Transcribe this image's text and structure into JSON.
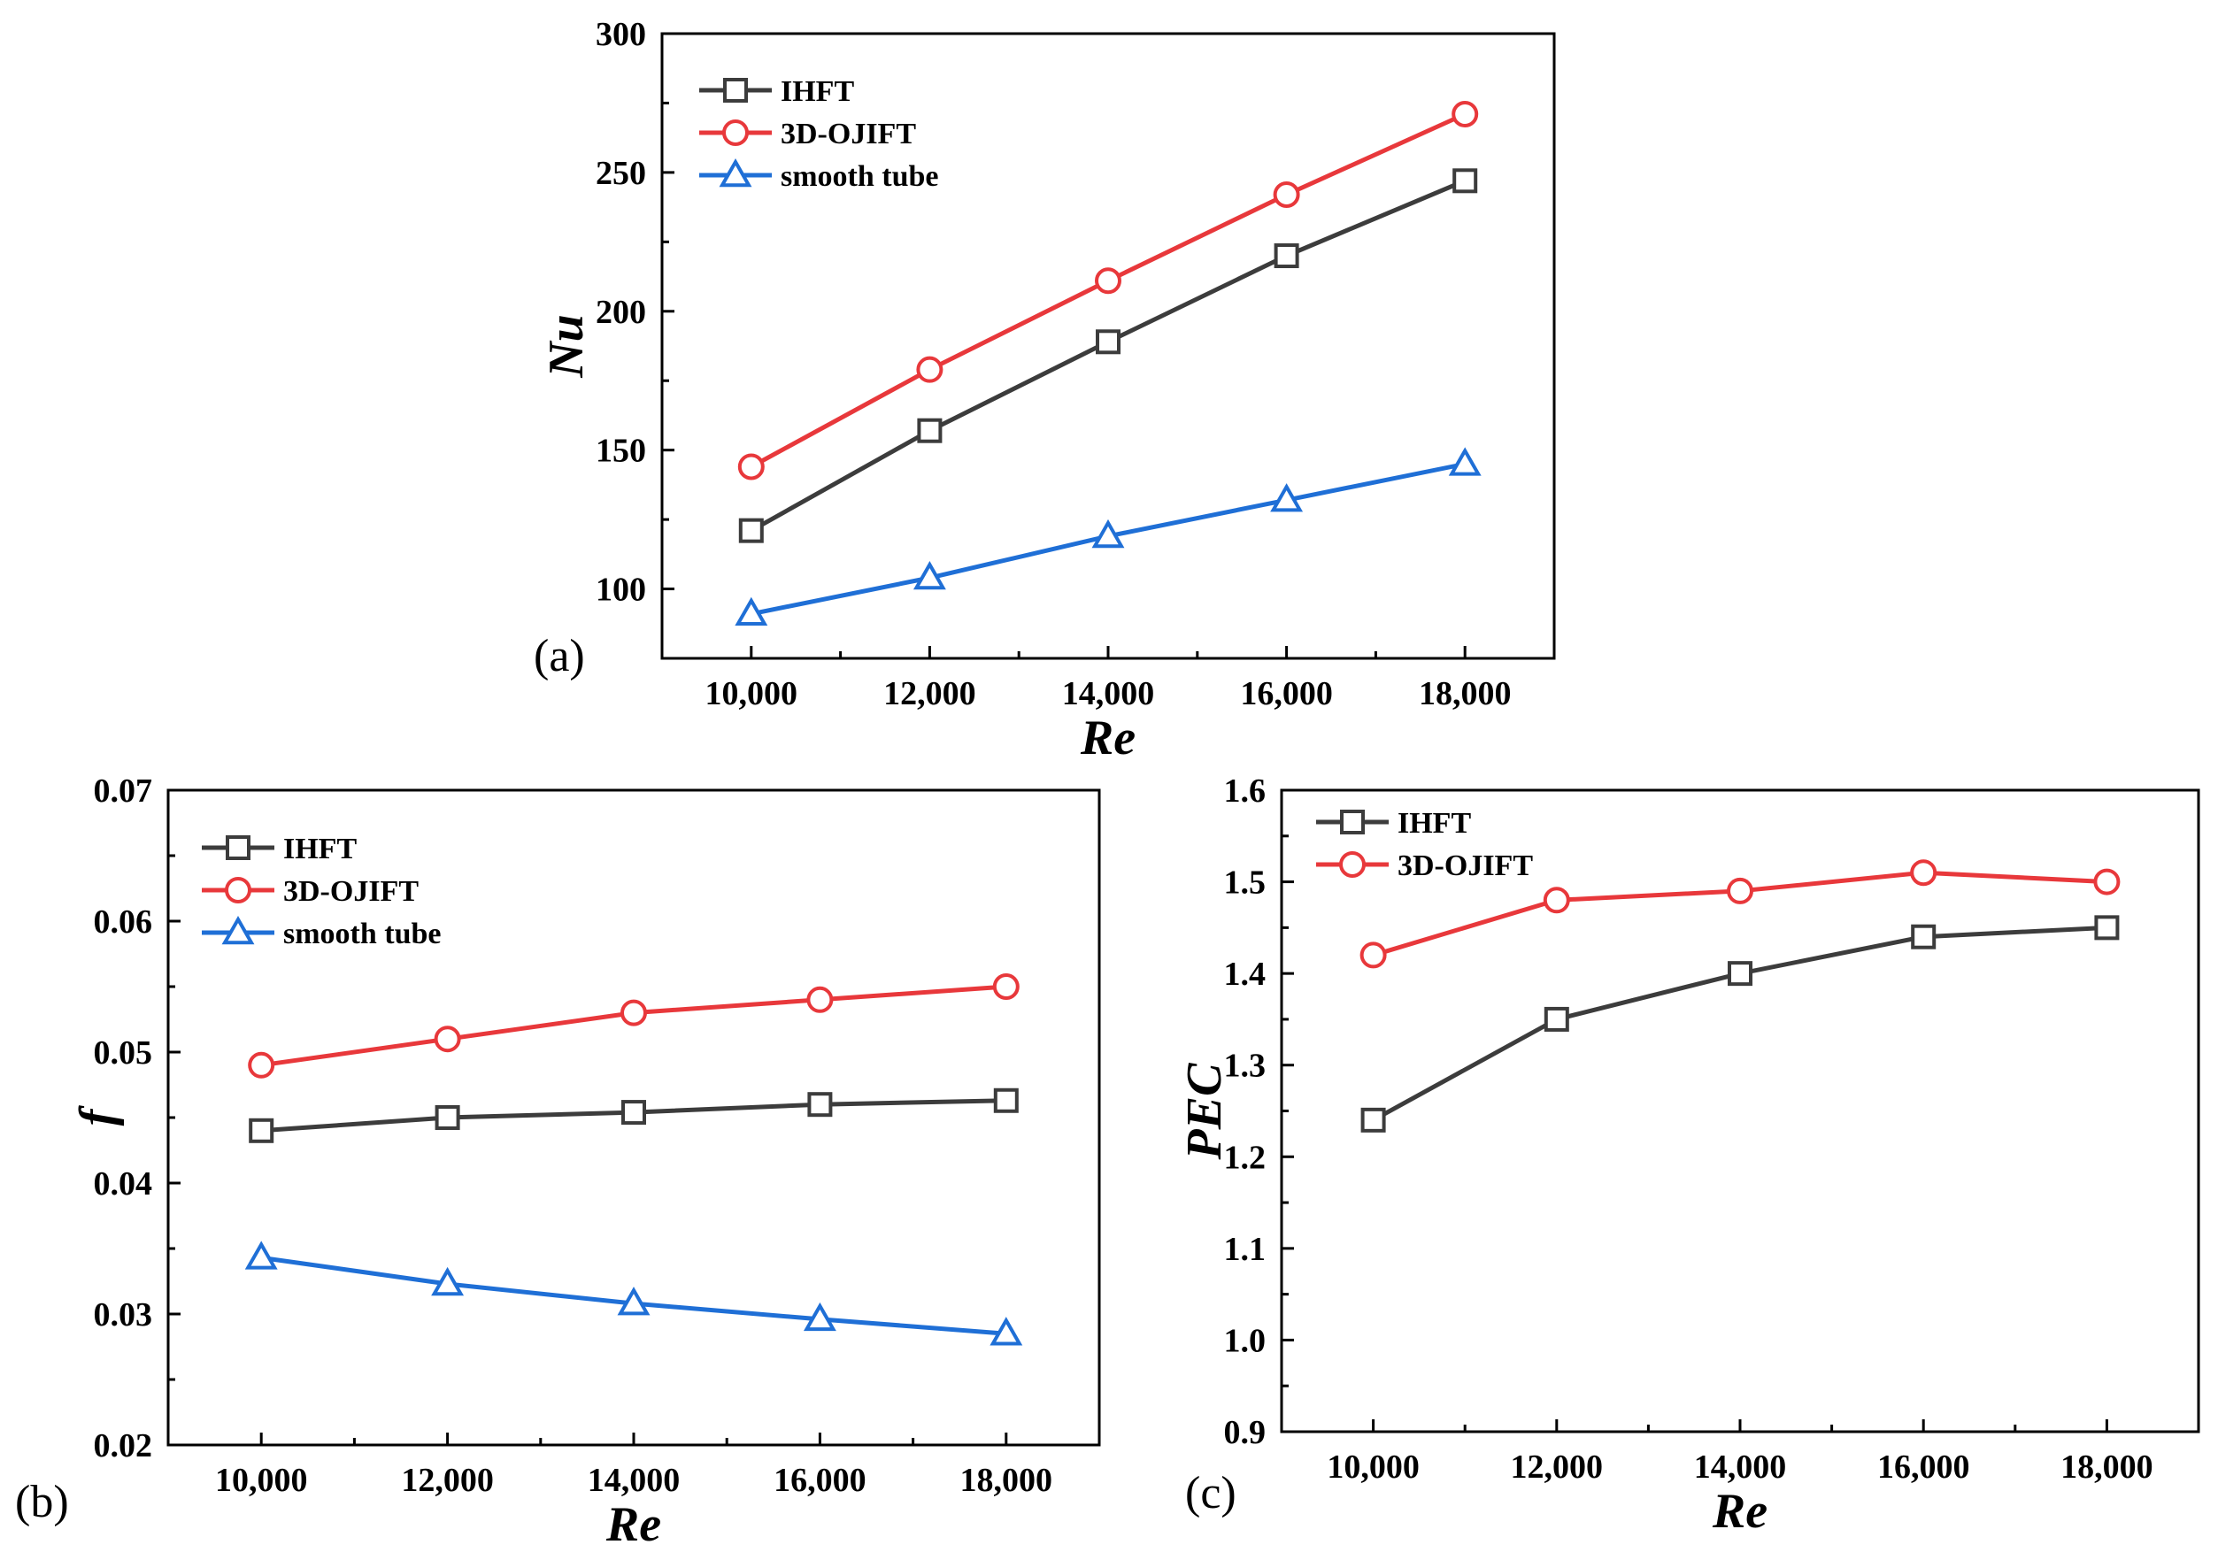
{
  "colors": {
    "IHFT": "#3c3c3c",
    "3D-OJIFT": "#e8383b",
    "smooth tube": "#1f6fd6"
  },
  "chart_data": [
    {
      "type": "line",
      "panel_label": "(a)",
      "xlabel": "Re",
      "ylabel": "Nu",
      "xlim": [
        9000,
        19000
      ],
      "ylim": [
        75,
        300
      ],
      "x": [
        10000,
        12000,
        14000,
        16000,
        18000
      ],
      "xtick_values": [
        10000,
        12000,
        14000,
        16000,
        18000
      ],
      "xtick_labels": [
        "10,000",
        "12,000",
        "14,000",
        "16,000",
        "18,000"
      ],
      "ytick_values": [
        100,
        150,
        200,
        250,
        300
      ],
      "ytick_labels": [
        "100",
        "150",
        "200",
        "250",
        "300"
      ],
      "legend_position": "top-left",
      "series": [
        {
          "name": "IHFT",
          "marker": "square",
          "values": [
            121,
            157,
            189,
            220,
            247
          ]
        },
        {
          "name": "3D-OJIFT",
          "marker": "circle",
          "values": [
            144,
            179,
            211,
            242,
            271
          ]
        },
        {
          "name": "smooth tube",
          "marker": "triangle",
          "values": [
            91,
            104,
            119,
            132,
            145
          ]
        }
      ]
    },
    {
      "type": "line",
      "panel_label": "(b)",
      "xlabel": "Re",
      "ylabel": "f",
      "xlim": [
        9000,
        19000
      ],
      "ylim": [
        0.02,
        0.07
      ],
      "x": [
        10000,
        12000,
        14000,
        16000,
        18000
      ],
      "xtick_values": [
        10000,
        12000,
        14000,
        16000,
        18000
      ],
      "xtick_labels": [
        "10,000",
        "12,000",
        "14,000",
        "16,000",
        "18,000"
      ],
      "ytick_values": [
        0.02,
        0.03,
        0.04,
        0.05,
        0.06,
        0.07
      ],
      "ytick_labels": [
        "0.02",
        "0.03",
        "0.04",
        "0.05",
        "0.06",
        "0.07"
      ],
      "legend_position": "top-left",
      "series": [
        {
          "name": "IHFT",
          "marker": "square",
          "values": [
            0.044,
            0.045,
            0.0454,
            0.046,
            0.0463
          ]
        },
        {
          "name": "3D-OJIFT",
          "marker": "circle",
          "values": [
            0.049,
            0.051,
            0.053,
            0.054,
            0.055
          ]
        },
        {
          "name": "smooth tube",
          "marker": "triangle",
          "values": [
            0.0343,
            0.0323,
            0.0308,
            0.0296,
            0.0285
          ]
        }
      ]
    },
    {
      "type": "line",
      "panel_label": "(c)",
      "xlabel": "Re",
      "ylabel": "PEC",
      "xlim": [
        9000,
        19000
      ],
      "ylim": [
        0.9,
        1.6
      ],
      "x": [
        10000,
        12000,
        14000,
        16000,
        18000
      ],
      "xtick_values": [
        10000,
        12000,
        14000,
        16000,
        18000
      ],
      "xtick_labels": [
        "10,000",
        "12,000",
        "14,000",
        "16,000",
        "18,000"
      ],
      "ytick_values": [
        0.9,
        1.0,
        1.1,
        1.2,
        1.3,
        1.4,
        1.5,
        1.6
      ],
      "ytick_labels": [
        "0.9",
        "1.0",
        "1.1",
        "1.2",
        "1.3",
        "1.4",
        "1.5",
        "1.6"
      ],
      "legend_position": "top-left",
      "series": [
        {
          "name": "IHFT",
          "marker": "square",
          "values": [
            1.24,
            1.35,
            1.4,
            1.44,
            1.45
          ]
        },
        {
          "name": "3D-OJIFT",
          "marker": "circle",
          "values": [
            1.42,
            1.48,
            1.49,
            1.51,
            1.5
          ]
        }
      ]
    }
  ]
}
